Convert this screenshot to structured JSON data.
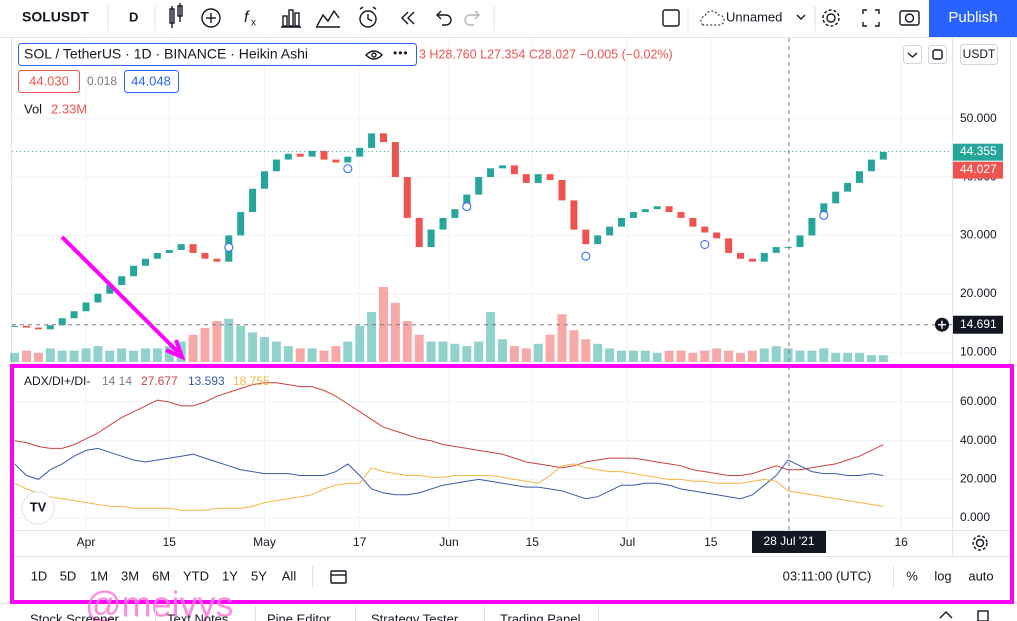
{
  "toolbar": {
    "symbol": "SOLUSDT",
    "interval": "D",
    "layout_name": "Unnamed",
    "publish": "Publish"
  },
  "chart_data": [
    {
      "type": "candlestick",
      "title": "SOL / TetherUS · 1D · BINANCE · Heikin Ashi",
      "ohlc": "3 H28.760 L27.354 C28.027 −0.005 (−0.02%)",
      "bid": "44.030",
      "spread": "0.018",
      "ask": "44.048",
      "volume_label": "Vol",
      "volume_value": "2.33M",
      "currency": "USDT",
      "up_color": "#26a69a",
      "down_color": "#ef5350",
      "values": [
        14.5,
        14.2,
        13.9,
        14.6,
        15.8,
        17.0,
        18.5,
        20.0,
        21.5,
        23.0,
        24.8,
        26.0,
        27.0,
        27.5,
        28.5,
        27.0,
        26.0,
        25.5,
        30.0,
        34.0,
        38.0,
        41.0,
        43.0,
        44.0,
        43.5,
        44.5,
        43.0,
        42.5,
        43.5,
        45.0,
        47.5,
        46.0,
        40.0,
        33.0,
        28.0,
        31.0,
        33.0,
        34.5,
        37.0,
        40.0,
        41.5,
        42.0,
        40.5,
        39.0,
        40.5,
        39.5,
        36.0,
        31.0,
        28.5,
        30.0,
        31.5,
        33.0,
        34.0,
        34.5,
        35.0,
        34.0,
        33.0,
        31.5,
        30.5,
        29.5,
        27.0,
        26.0,
        25.5,
        27.0,
        28.0,
        28.0,
        30.0,
        33.0,
        35.5,
        37.5,
        39.0,
        41.0,
        43.0,
        44.3
      ],
      "volume": [
        0.4,
        0.5,
        0.4,
        0.6,
        0.5,
        0.5,
        0.6,
        0.7,
        0.5,
        0.6,
        0.5,
        0.6,
        0.6,
        0.7,
        0.9,
        1.2,
        1.5,
        1.8,
        1.9,
        1.6,
        1.3,
        1.1,
        0.9,
        0.7,
        0.6,
        0.6,
        0.5,
        0.7,
        0.9,
        1.6,
        2.2,
        3.3,
        2.6,
        1.8,
        1.2,
        0.9,
        0.9,
        0.8,
        0.7,
        0.9,
        2.2,
        1.0,
        0.7,
        0.6,
        0.8,
        1.2,
        2.1,
        1.4,
        1.0,
        0.8,
        0.6,
        0.5,
        0.5,
        0.5,
        0.4,
        0.5,
        0.5,
        0.4,
        0.5,
        0.6,
        0.5,
        0.4,
        0.5,
        0.6,
        0.7,
        0.6,
        0.5,
        0.5,
        0.6,
        0.4,
        0.4,
        0.4,
        0.3,
        0.3
      ],
      "ylim": [
        8.3,
        63.5
      ],
      "yticks": [
        {
          "value": 10,
          "label": "10.000"
        },
        {
          "value": 20,
          "label": "20.000"
        },
        {
          "value": 30,
          "label": "30.000"
        },
        {
          "value": 40,
          "label": "40.000"
        },
        {
          "value": 50,
          "label": "50.000"
        }
      ],
      "xticks": [
        {
          "value": 6,
          "label": "Apr"
        },
        {
          "value": 13,
          "label": "15"
        },
        {
          "value": 21,
          "label": "May"
        },
        {
          "value": 29,
          "label": "17"
        },
        {
          "value": 36.5,
          "label": "Jun"
        },
        {
          "value": 43.5,
          "label": "15"
        },
        {
          "value": 51.5,
          "label": "Jul"
        },
        {
          "value": 58.5,
          "label": "15"
        },
        {
          "value": 74.5,
          "label": "16"
        }
      ],
      "price_tags": [
        {
          "value": 44.355,
          "color": "#26a69a"
        },
        {
          "value": 44.027,
          "color": "#ef5350"
        }
      ],
      "crosshair": {
        "price": 14.691,
        "date": "28 Jul '21"
      },
      "grid": true
    },
    {
      "type": "line",
      "title": "ADX/DI+/DI-",
      "params": "14 14",
      "series": [
        {
          "color": "#c8423d",
          "legend": "27.677",
          "values": [
            40,
            39,
            37,
            36,
            36,
            38,
            41,
            44,
            48,
            52,
            55,
            58,
            61,
            60,
            58,
            58,
            60,
            63,
            65,
            67,
            69,
            70,
            70,
            69,
            68,
            68,
            66,
            63,
            59,
            55,
            51,
            47,
            45,
            43,
            41,
            40,
            38,
            37,
            36,
            35,
            34,
            33,
            31,
            29,
            28,
            27,
            26,
            27,
            29,
            30,
            31,
            31,
            31,
            30,
            29,
            28,
            27,
            25,
            24,
            23,
            22,
            22,
            23,
            25,
            27,
            25,
            25,
            26,
            27,
            28,
            30,
            32,
            35,
            38
          ]
        },
        {
          "color": "#3b5ba8",
          "legend": "13.593",
          "values": [
            28,
            22,
            20,
            25,
            28,
            32,
            35,
            36,
            34,
            32,
            30,
            29,
            30,
            31,
            32,
            33,
            31,
            29,
            27,
            25,
            24,
            23,
            23,
            23,
            22,
            22,
            22,
            24,
            28,
            22,
            15,
            13,
            12,
            12,
            13,
            15,
            17,
            18,
            19,
            20,
            19,
            18,
            17,
            16,
            16,
            15,
            14,
            12,
            10,
            11,
            14,
            17,
            17,
            18,
            18,
            17,
            15,
            14,
            13,
            12,
            11,
            10,
            12,
            17,
            22,
            30,
            27,
            24,
            23,
            23,
            22,
            22,
            23,
            22
          ]
        },
        {
          "color": "#f2b742",
          "legend": "18.755",
          "values": [
            18,
            15,
            13,
            11,
            10,
            9,
            8,
            7,
            6,
            6,
            5,
            5,
            5,
            5,
            4,
            4,
            4,
            5,
            5,
            5,
            6,
            8,
            9,
            10,
            11,
            12,
            15,
            17,
            18,
            18,
            26,
            24,
            23,
            22,
            22,
            21,
            21,
            22,
            22,
            22,
            22,
            21,
            20,
            19,
            18,
            22,
            27,
            28,
            26,
            25,
            24,
            24,
            23,
            22,
            21,
            20,
            20,
            19,
            19,
            18,
            18,
            18,
            19,
            20,
            19,
            14,
            13,
            12,
            11,
            10,
            9,
            8,
            7,
            6
          ]
        }
      ],
      "ylim": [
        -6.2,
        77.6
      ],
      "yticks": [
        {
          "value": 0,
          "label": "0.000"
        },
        {
          "value": 20,
          "label": "20.000"
        },
        {
          "value": 40,
          "label": "40.000"
        },
        {
          "value": 60,
          "label": "60.000"
        }
      ],
      "grid": true
    }
  ],
  "bottom_bar": {
    "ranges": [
      "1D",
      "5D",
      "1M",
      "3M",
      "6M",
      "YTD",
      "1Y",
      "5Y",
      "All"
    ],
    "time": "03:11:00 (UTC)",
    "scale_options": [
      "%",
      "log",
      "auto"
    ]
  },
  "tabs": [
    "Stock Screener",
    "Text Notes",
    "Pine Editor",
    "Strategy Tester",
    "Trading Panel"
  ],
  "watermark": "@meivys"
}
